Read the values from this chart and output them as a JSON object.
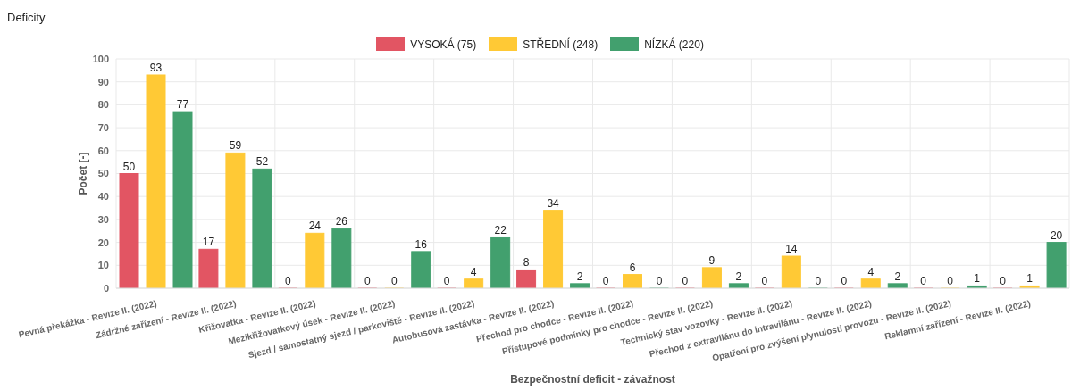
{
  "chart_data": {
    "type": "bar",
    "title": "Deficity",
    "xlabel": "Bezpečnostní deficit - závažnost",
    "ylabel": "Počet [-]",
    "categories": [
      "Pevná překážka - Revize II. (2022)",
      "Zádržné zařízení - Revize II. (2022)",
      "Křižovatka - Revize II. (2022)",
      "Mezikřižovatkový úsek - Revize II. (2022)",
      "Sjezd / samostatný sjezd / parkoviště - Revize II. (2022)",
      "Autobusová zastávka - Revize II. (2022)",
      "Přechod pro chodce - Revize II. (2022)",
      "Přístupové podmínky pro chodce - Revize II. (2022)",
      "Technický stav vozovky - Revize II. (2022)",
      "Přechod z extravilánu do intravilánu - Revize II. (2022)",
      "Opatření pro zvýšení plynulosti provozu - Revize II. (2022)",
      "Reklamní zařízení - Revize II. (2022)"
    ],
    "series": [
      {
        "name": "VYSOKÁ (75)",
        "color": "#e25563",
        "values": [
          50,
          17,
          0,
          0,
          0,
          8,
          0,
          0,
          0,
          0,
          0,
          0
        ]
      },
      {
        "name": "STŘEDNÍ (248)",
        "color": "#ffc935",
        "values": [
          93,
          59,
          24,
          0,
          4,
          34,
          6,
          9,
          14,
          4,
          0,
          1
        ]
      },
      {
        "name": "NÍZKÁ (220)",
        "color": "#42a06e",
        "values": [
          77,
          52,
          26,
          16,
          22,
          2,
          0,
          2,
          0,
          2,
          1,
          20
        ]
      }
    ],
    "ylim": [
      0,
      100
    ],
    "yticks": [
      0,
      10,
      20,
      30,
      40,
      50,
      60,
      70,
      80,
      90,
      100
    ],
    "grid": true,
    "legend": "top",
    "data_labels": true
  }
}
